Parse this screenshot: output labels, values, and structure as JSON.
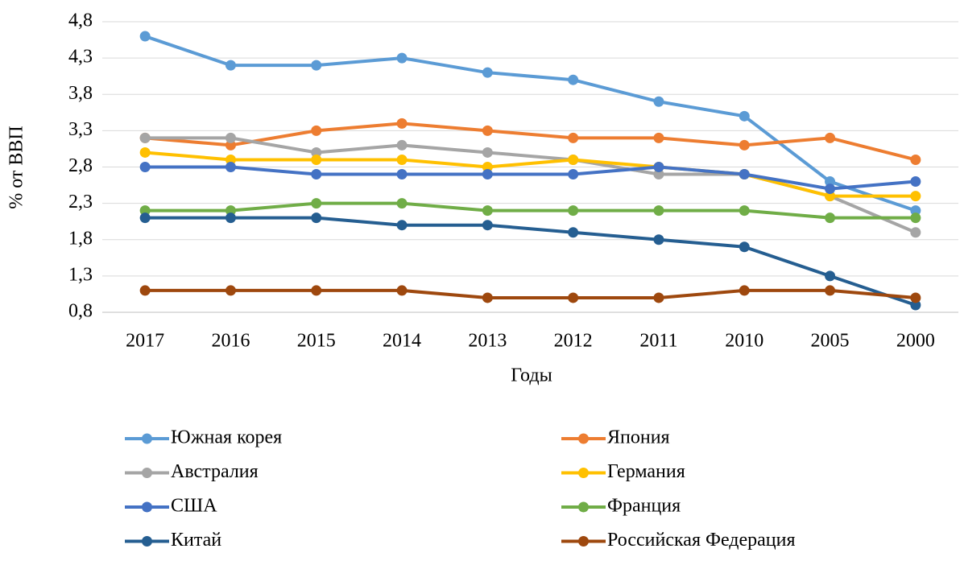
{
  "chart_data": {
    "type": "line",
    "ylabel": "% от ВВП",
    "xlabel": "Годы",
    "categories": [
      "2017",
      "2016",
      "2015",
      "2014",
      "2013",
      "2012",
      "2011",
      "2010",
      "2005",
      "2000"
    ],
    "ylim": [
      0.8,
      4.8
    ],
    "yticks": [
      {
        "value": 0.8,
        "label": "0,8"
      },
      {
        "value": 1.3,
        "label": "1,3"
      },
      {
        "value": 1.8,
        "label": "1,8"
      },
      {
        "value": 2.3,
        "label": "2,3"
      },
      {
        "value": 2.8,
        "label": "2,8"
      },
      {
        "value": 3.3,
        "label": "3,3"
      },
      {
        "value": 3.8,
        "label": "3,8"
      },
      {
        "value": 4.3,
        "label": "4,3"
      },
      {
        "value": 4.8,
        "label": "4,8"
      }
    ],
    "grid": true,
    "legend": "bottom",
    "series": [
      {
        "name": "Южная корея",
        "color": "#5b9bd5",
        "values": [
          4.6,
          4.2,
          4.2,
          4.3,
          4.1,
          4.0,
          3.7,
          3.5,
          2.6,
          2.2
        ]
      },
      {
        "name": "Япония",
        "color": "#ed7d31",
        "values": [
          3.2,
          3.1,
          3.3,
          3.4,
          3.3,
          3.2,
          3.2,
          3.1,
          3.2,
          2.9
        ]
      },
      {
        "name": "Австралия",
        "color": "#a5a5a5",
        "values": [
          3.2,
          3.2,
          3.0,
          3.1,
          3.0,
          2.9,
          2.7,
          2.7,
          2.4,
          1.9
        ]
      },
      {
        "name": "Германия",
        "color": "#ffc000",
        "values": [
          3.0,
          2.9,
          2.9,
          2.9,
          2.8,
          2.9,
          2.8,
          2.7,
          2.4,
          2.4
        ]
      },
      {
        "name": "США",
        "color": "#4472c4",
        "values": [
          2.8,
          2.8,
          2.7,
          2.7,
          2.7,
          2.7,
          2.8,
          2.7,
          2.5,
          2.6
        ]
      },
      {
        "name": "Франция",
        "color": "#70ad47",
        "values": [
          2.2,
          2.2,
          2.3,
          2.3,
          2.2,
          2.2,
          2.2,
          2.2,
          2.1,
          2.1
        ]
      },
      {
        "name": "Китай",
        "color": "#255e91",
        "values": [
          2.1,
          2.1,
          2.1,
          2.0,
          2.0,
          1.9,
          1.8,
          1.7,
          1.3,
          0.9
        ]
      },
      {
        "name": "Российская Федерация",
        "color": "#9e480e",
        "values": [
          1.1,
          1.1,
          1.1,
          1.1,
          1.0,
          1.0,
          1.0,
          1.1,
          1.1,
          1.0
        ]
      }
    ]
  }
}
